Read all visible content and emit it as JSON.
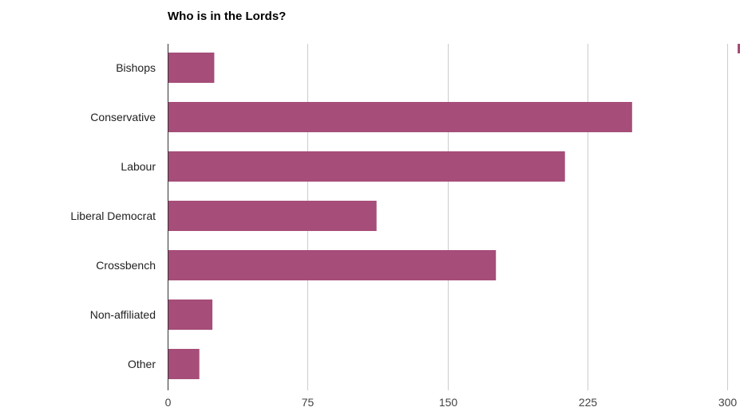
{
  "chart_data": {
    "type": "bar",
    "orientation": "horizontal",
    "title": "Who is in the Lords?",
    "xlabel": "",
    "ylabel": "",
    "categories": [
      "Bishops",
      "Conservative",
      "Labour",
      "Liberal Democrat",
      "Crossbench",
      "Non-affiliated",
      "Other"
    ],
    "values": [
      25,
      249,
      213,
      112,
      176,
      24,
      17
    ],
    "xlim": [
      0,
      300
    ],
    "ticks": [
      0,
      75,
      150,
      225,
      300
    ],
    "grid": true,
    "legend": "none",
    "bar_color": "#a64d79"
  }
}
